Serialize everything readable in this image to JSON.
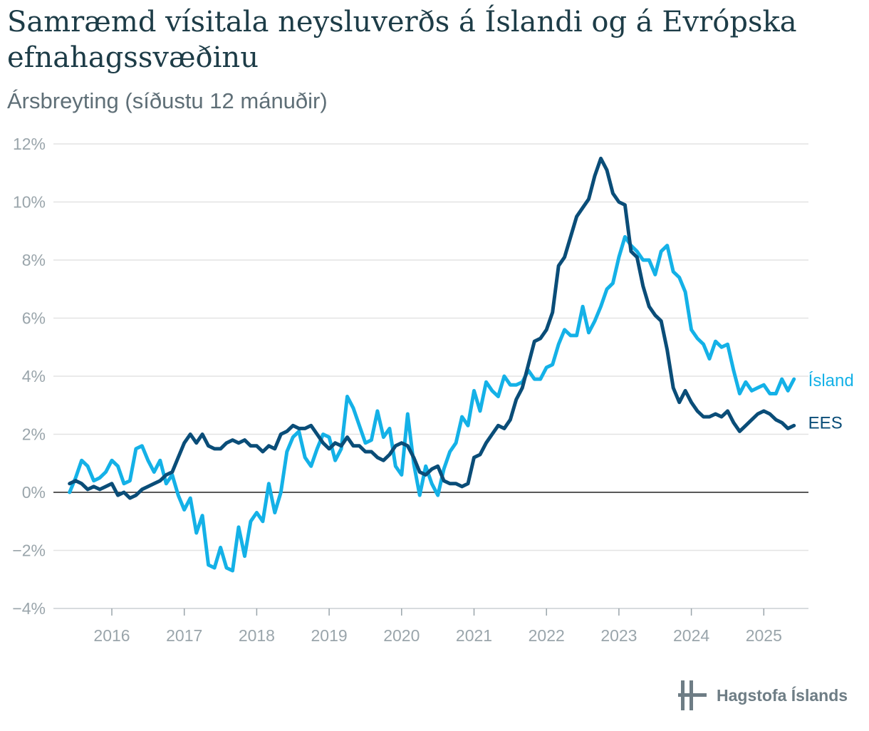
{
  "header": {
    "title": "Samræmd vísitala neysluverðs á Íslandi og á Evrópska efnahagssvæðinu",
    "subtitle": "Ársbreyting (síðustu 12 mánuðir)"
  },
  "brand": {
    "name": "Hagstofa Íslands",
    "icon": "hagstofa-logo-icon"
  },
  "colors": {
    "island": "#14b1e7",
    "ees": "#0a4d78",
    "grid": "#e3e3e3",
    "zero": "#222222"
  },
  "chart_data": {
    "type": "line",
    "title": "Samræmd vísitala neysluverðs á Íslandi og á Evrópska efnahagssvæðinu",
    "subtitle": "Ársbreyting (síðustu 12 mánuðir)",
    "ylim": [
      -4,
      12
    ],
    "yticks": [
      -4,
      -2,
      0,
      2,
      4,
      6,
      8,
      10,
      12
    ],
    "ytick_labels": [
      "−4%",
      "−2%",
      "0%",
      "2%",
      "4%",
      "6%",
      "8%",
      "10%",
      "12%"
    ],
    "xticks": [
      2016,
      2017,
      2018,
      2019,
      2020,
      2021,
      2022,
      2023,
      2024,
      2025
    ],
    "xtick_labels": [
      "2016",
      "2017",
      "2018",
      "2019",
      "2020",
      "2021",
      "2022",
      "2023",
      "2024",
      "2025"
    ],
    "x_start": "2015-06",
    "grid": true,
    "legend": "end-of-line labels",
    "series": [
      {
        "name": "Ísland",
        "values": [
          0.0,
          0.5,
          1.1,
          0.9,
          0.4,
          0.5,
          0.7,
          1.1,
          0.9,
          0.3,
          0.4,
          1.5,
          1.6,
          1.1,
          0.7,
          1.1,
          0.3,
          0.6,
          -0.1,
          -0.6,
          -0.2,
          -1.4,
          -0.8,
          -2.5,
          -2.6,
          -1.9,
          -2.6,
          -2.7,
          -1.2,
          -2.2,
          -1.0,
          -0.7,
          -1.0,
          0.3,
          -0.7,
          0.0,
          1.4,
          1.9,
          2.1,
          1.2,
          0.9,
          1.5,
          2.0,
          1.9,
          1.1,
          1.5,
          3.3,
          2.9,
          2.3,
          1.7,
          1.8,
          2.8,
          1.9,
          2.2,
          0.9,
          0.6,
          2.7,
          1.0,
          -0.1,
          0.9,
          0.3,
          -0.1,
          0.8,
          1.4,
          1.7,
          2.6,
          2.3,
          3.5,
          2.8,
          3.8,
          3.5,
          3.3,
          4.0,
          3.7,
          3.7,
          3.8,
          4.2,
          3.9,
          3.9,
          4.3,
          4.4,
          5.1,
          5.6,
          5.4,
          5.4,
          6.4,
          5.5,
          5.9,
          6.4,
          7.0,
          7.2,
          8.1,
          8.8,
          8.5,
          8.3,
          8.0,
          8.0,
          7.5,
          8.3,
          8.5,
          7.6,
          7.4,
          6.9,
          5.6,
          5.3,
          5.1,
          4.6,
          5.2,
          5.0,
          5.1,
          4.2,
          3.4,
          3.8,
          3.5,
          3.6,
          3.7,
          3.4,
          3.4,
          3.9,
          3.5,
          3.9
        ]
      },
      {
        "name": "EES",
        "values": [
          0.3,
          0.4,
          0.3,
          0.1,
          0.2,
          0.1,
          0.2,
          0.3,
          -0.1,
          0.0,
          -0.2,
          -0.1,
          0.1,
          0.2,
          0.3,
          0.4,
          0.6,
          0.7,
          1.2,
          1.7,
          2.0,
          1.7,
          2.0,
          1.6,
          1.5,
          1.5,
          1.7,
          1.8,
          1.7,
          1.8,
          1.6,
          1.6,
          1.4,
          1.6,
          1.5,
          2.0,
          2.1,
          2.3,
          2.2,
          2.2,
          2.3,
          2.0,
          1.7,
          1.5,
          1.7,
          1.6,
          1.9,
          1.6,
          1.6,
          1.4,
          1.4,
          1.2,
          1.1,
          1.3,
          1.6,
          1.7,
          1.6,
          1.2,
          0.7,
          0.6,
          0.8,
          0.9,
          0.4,
          0.3,
          0.3,
          0.2,
          0.3,
          1.2,
          1.3,
          1.7,
          2.0,
          2.3,
          2.2,
          2.5,
          3.2,
          3.6,
          4.4,
          5.2,
          5.3,
          5.6,
          6.2,
          7.8,
          8.1,
          8.8,
          9.5,
          9.8,
          10.1,
          10.9,
          11.5,
          11.1,
          10.3,
          10.0,
          9.9,
          8.3,
          8.1,
          7.1,
          6.4,
          6.1,
          5.9,
          4.9,
          3.6,
          3.1,
          3.5,
          3.1,
          2.8,
          2.6,
          2.6,
          2.7,
          2.6,
          2.8,
          2.4,
          2.1,
          2.3,
          2.5,
          2.7,
          2.8,
          2.7,
          2.5,
          2.4,
          2.2,
          2.3
        ]
      }
    ]
  }
}
